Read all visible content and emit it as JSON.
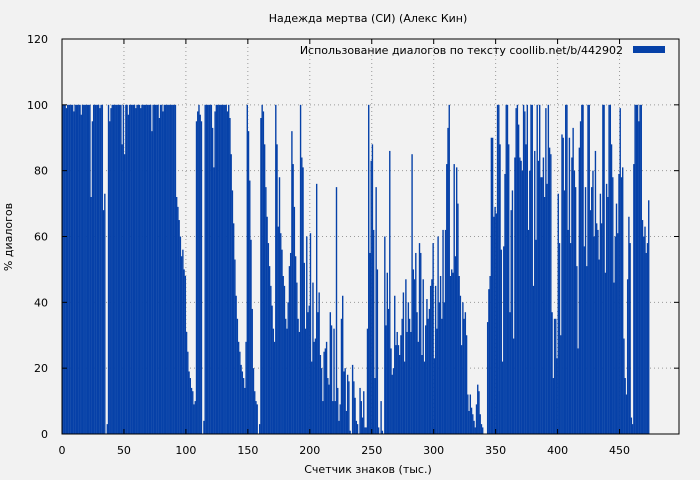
{
  "chart_data": {
    "type": "bar",
    "title": "Надежда мертва (СИ) (Алекс Кин)",
    "xlabel": "Счетчик знаков (тыс.)",
    "ylabel": "% диалогов",
    "xlim": [
      0,
      498
    ],
    "ylim": [
      0,
      120
    ],
    "xticks": [
      0,
      50,
      100,
      150,
      200,
      250,
      300,
      350,
      400,
      450
    ],
    "yticks": [
      0,
      20,
      40,
      60,
      80,
      100,
      120
    ],
    "grid": true,
    "legend_position": "top-right",
    "series": [
      {
        "name": "Использование диалогов по тексту  coollib.net/b/442902",
        "color": "#0641a8",
        "bin_width": 1,
        "x_start": 0,
        "values": [
          100,
          100,
          100,
          99,
          100,
          100,
          100,
          100,
          100,
          98,
          100,
          100,
          100,
          100,
          100,
          97,
          100,
          100,
          100,
          100,
          100,
          100,
          100,
          72,
          95,
          100,
          100,
          100,
          100,
          100,
          99,
          100,
          100,
          68,
          73,
          0,
          3,
          100,
          95,
          99,
          100,
          100,
          100,
          100,
          100,
          100,
          100,
          100,
          88,
          100,
          85,
          100,
          100,
          97,
          100,
          100,
          100,
          100,
          100,
          99,
          100,
          100,
          100,
          99,
          100,
          100,
          100,
          100,
          100,
          100,
          100,
          100,
          92,
          100,
          100,
          100,
          100,
          100,
          96,
          100,
          100,
          98,
          100,
          100,
          100,
          100,
          100,
          100,
          100,
          100,
          100,
          100,
          72,
          69,
          65,
          60,
          54,
          56,
          50,
          48,
          31,
          25,
          19,
          17,
          14,
          13,
          9,
          10,
          95,
          98,
          100,
          97,
          95,
          0,
          4,
          100,
          100,
          100,
          100,
          100,
          100,
          93,
          81,
          98,
          100,
          100,
          100,
          100,
          100,
          100,
          100,
          100,
          100,
          98,
          100,
          96,
          85,
          74,
          64,
          53,
          42,
          35,
          28,
          25,
          21,
          19,
          17,
          14,
          28,
          100,
          92,
          77,
          59,
          38,
          20,
          13,
          10,
          9,
          0,
          3,
          96,
          100,
          98,
          88,
          75,
          66,
          58,
          51,
          45,
          39,
          32,
          28,
          100,
          88,
          63,
          78,
          61,
          56,
          48,
          45,
          35,
          32,
          40,
          51,
          55,
          92,
          82,
          69,
          54,
          46,
          35,
          31,
          100,
          84,
          81,
          52,
          32,
          60,
          37,
          39,
          61,
          22,
          46,
          28,
          29,
          76,
          37,
          43,
          24,
          20,
          10,
          25,
          26,
          28,
          17,
          15,
          37,
          33,
          10,
          32,
          10,
          75,
          14,
          4,
          9,
          35,
          42,
          19,
          20,
          7,
          18,
          16,
          1,
          0,
          21,
          16,
          11,
          4,
          3,
          0,
          14,
          10,
          5,
          13,
          2,
          2,
          32,
          100,
          55,
          83,
          88,
          62,
          17,
          75,
          50,
          2,
          0,
          10,
          1,
          0,
          60,
          33,
          49,
          38,
          86,
          26,
          18,
          20,
          42,
          27,
          31,
          27,
          24,
          30,
          35,
          43,
          22,
          47,
          31,
          40,
          35,
          31,
          85,
          50,
          47,
          55,
          37,
          28,
          58,
          55,
          24,
          47,
          22,
          33,
          41,
          35,
          38,
          45,
          47,
          58,
          23,
          45,
          32,
          60,
          40,
          48,
          35,
          62,
          40,
          62,
          82,
          93,
          100,
          48,
          50,
          49,
          82,
          54,
          81,
          70,
          48,
          42,
          27,
          40,
          35,
          37,
          30,
          12,
          7,
          12,
          8,
          6,
          4,
          2,
          9,
          15,
          13,
          6,
          3,
          2,
          0,
          0,
          0,
          34,
          44,
          48,
          90,
          90,
          66,
          69,
          67,
          100,
          100,
          88,
          56,
          22,
          57,
          79,
          100,
          100,
          88,
          37,
          68,
          74,
          29,
          84,
          99,
          100,
          94,
          84,
          83,
          80,
          100,
          98,
          88,
          100,
          62,
          80,
          100,
          100,
          45,
          86,
          59,
          100,
          83,
          100,
          78,
          78,
          84,
          72,
          99,
          76,
          100,
          87,
          85,
          37,
          17,
          35,
          35,
          23,
          73,
          58,
          30,
          91,
          90,
          74,
          100,
          100,
          62,
          90,
          58,
          84,
          93,
          80,
          75,
          51,
          26,
          87,
          95,
          100,
          100,
          57,
          75,
          51,
          100,
          100,
          68,
          75,
          80,
          60,
          86,
          64,
          62,
          53,
          73,
          64,
          100,
          100,
          49,
          76,
          72,
          100,
          100,
          88,
          78,
          46,
          60,
          70,
          61,
          79,
          99,
          78,
          81,
          29,
          17,
          12,
          47,
          66,
          58,
          5,
          3,
          82,
          100,
          100,
          100,
          95,
          100,
          100,
          65,
          60,
          63,
          55,
          58,
          71,
          0
        ]
      }
    ]
  }
}
